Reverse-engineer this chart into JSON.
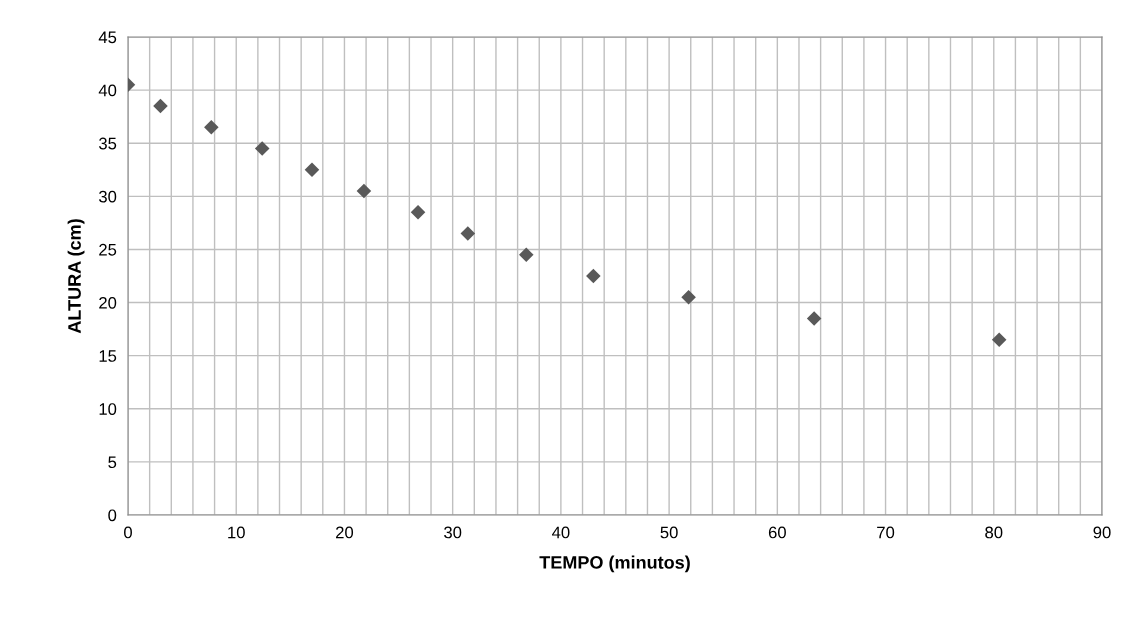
{
  "chart_data": {
    "type": "scatter",
    "xlabel": "TEMPO (minutos)",
    "ylabel": "ALTURA (cm)",
    "x": [
      0,
      3.0,
      7.7,
      12.4,
      17.0,
      21.8,
      26.8,
      31.4,
      36.8,
      43.0,
      51.8,
      63.4,
      80.5
    ],
    "series": [
      {
        "color": "#595959",
        "values": [
          40.5,
          38.5,
          36.5,
          34.5,
          32.5,
          30.5,
          28.5,
          26.5,
          24.5,
          22.5,
          20.5,
          18.5,
          16.5
        ]
      }
    ],
    "marker": "diamond",
    "xlim": [
      0,
      90
    ],
    "xticks": [
      0,
      {
        "value": 2,
        "label": null
      },
      {
        "value": 4,
        "label": null
      },
      {
        "value": 6,
        "label": null
      },
      {
        "value": 8,
        "label": null
      },
      10,
      {
        "value": 12,
        "label": null
      },
      {
        "value": 14,
        "label": null
      },
      {
        "value": 16,
        "label": null
      },
      {
        "value": 18,
        "label": null
      },
      20,
      {
        "value": 22,
        "label": null
      },
      {
        "value": 24,
        "label": null
      },
      {
        "value": 26,
        "label": null
      },
      {
        "value": 28,
        "label": null
      },
      30,
      {
        "value": 32,
        "label": null
      },
      {
        "value": 34,
        "label": null
      },
      {
        "value": 36,
        "label": null
      },
      {
        "value": 38,
        "label": null
      },
      40,
      {
        "value": 42,
        "label": null
      },
      {
        "value": 44,
        "label": null
      },
      {
        "value": 46,
        "label": null
      },
      {
        "value": 48,
        "label": null
      },
      50,
      {
        "value": 52,
        "label": null
      },
      {
        "value": 54,
        "label": null
      },
      {
        "value": 56,
        "label": null
      },
      {
        "value": 58,
        "label": null
      },
      60,
      {
        "value": 62,
        "label": null
      },
      {
        "value": 64,
        "label": null
      },
      {
        "value": 66,
        "label": null
      },
      {
        "value": 68,
        "label": null
      },
      70,
      {
        "value": 72,
        "label": null
      },
      {
        "value": 74,
        "label": null
      },
      {
        "value": 76,
        "label": null
      },
      {
        "value": 78,
        "label": null
      },
      80,
      {
        "value": 82,
        "label": null
      },
      {
        "value": 84,
        "label": null
      },
      {
        "value": 86,
        "label": null
      },
      {
        "value": 88,
        "label": null
      },
      90
    ],
    "ylim": [
      0,
      45
    ],
    "yticks": [
      0,
      5,
      10,
      15,
      20,
      25,
      30,
      35,
      40,
      45
    ],
    "grid": true
  }
}
